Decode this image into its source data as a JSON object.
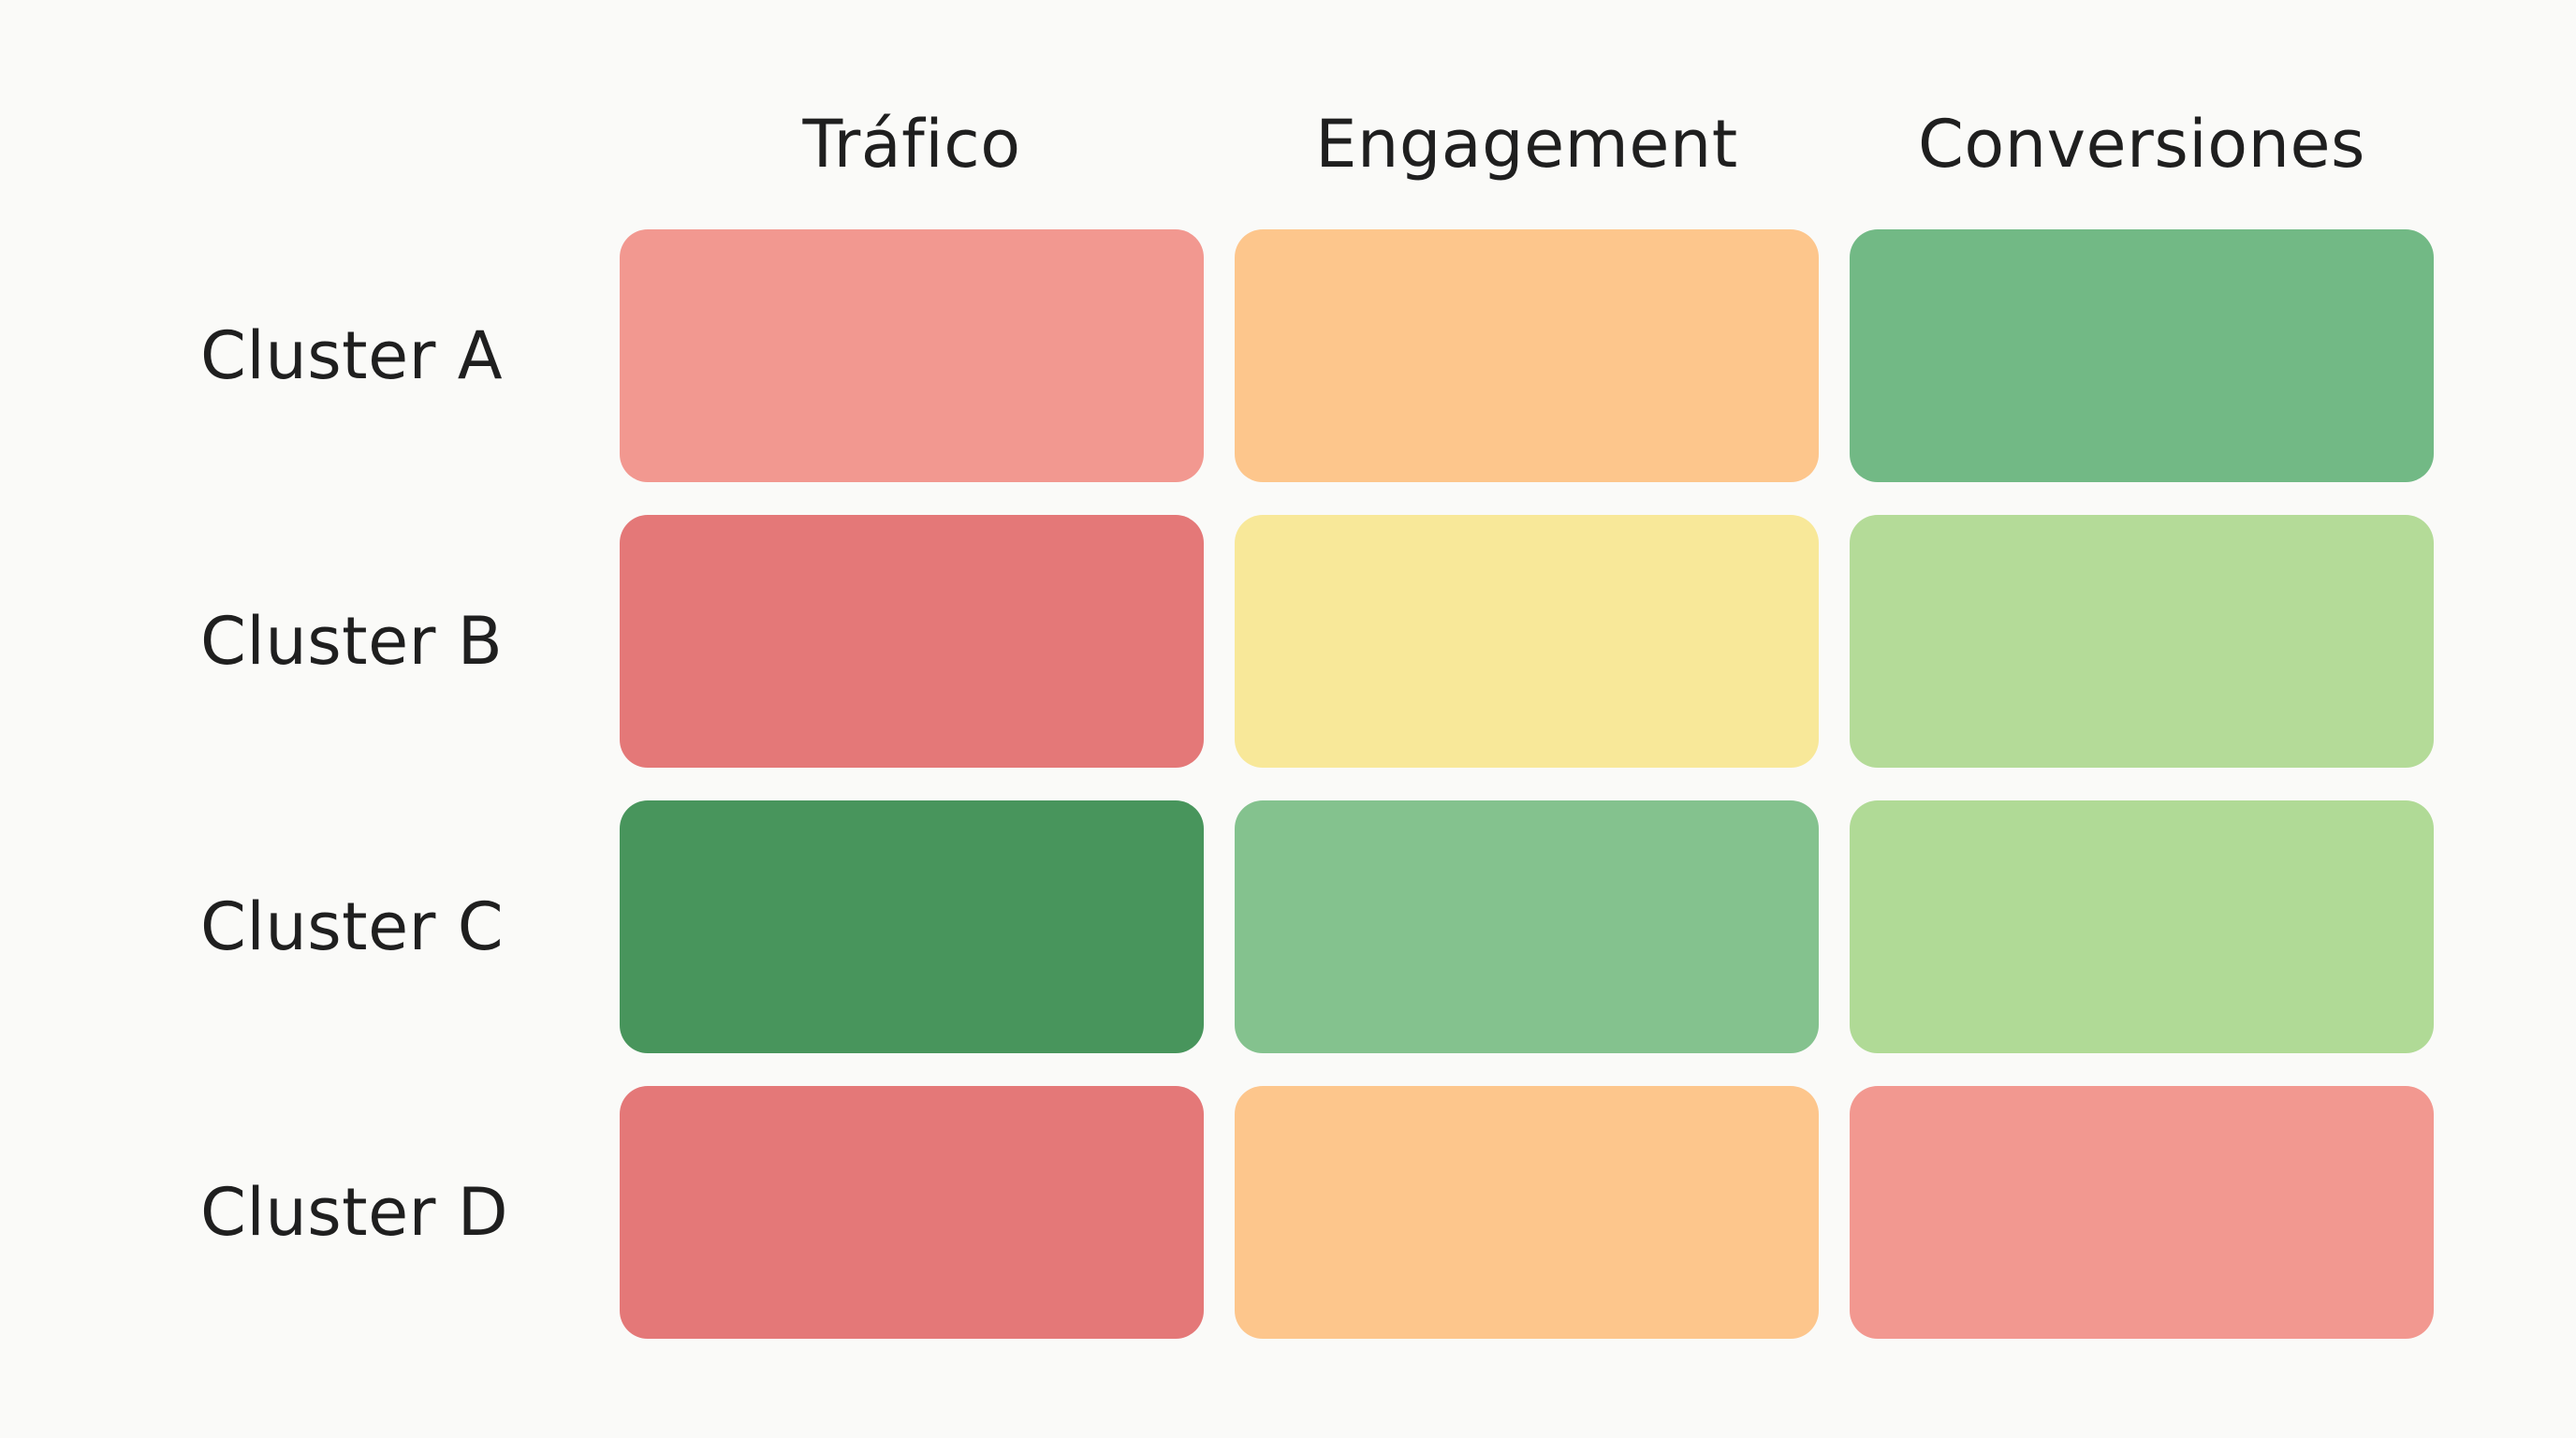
{
  "chart_data": {
    "type": "heatmap",
    "columns": [
      "Tráfico",
      "Engagement",
      "Conversiones"
    ],
    "rows": [
      "Cluster A",
      "Cluster B",
      "Cluster C",
      "Cluster D"
    ],
    "cells": [
      [
        {
          "level": "medium-low",
          "color": "#f29890"
        },
        {
          "level": "medium",
          "color": "#fdc68c"
        },
        {
          "level": "high",
          "color": "#72b985"
        }
      ],
      [
        {
          "level": "low",
          "color": "#e47878"
        },
        {
          "level": "neutral",
          "color": "#f8e899"
        },
        {
          "level": "medium-high",
          "color": "#b4db98"
        }
      ],
      [
        {
          "level": "very-high",
          "color": "#48955c"
        },
        {
          "level": "high",
          "color": "#84c28e"
        },
        {
          "level": "medium-high",
          "color": "#b0da96"
        }
      ],
      [
        {
          "level": "low",
          "color": "#e47878"
        },
        {
          "level": "medium",
          "color": "#fdc68c"
        },
        {
          "level": "medium-low",
          "color": "#f29890"
        }
      ]
    ],
    "title": "",
    "legend": "none",
    "grid": false
  }
}
